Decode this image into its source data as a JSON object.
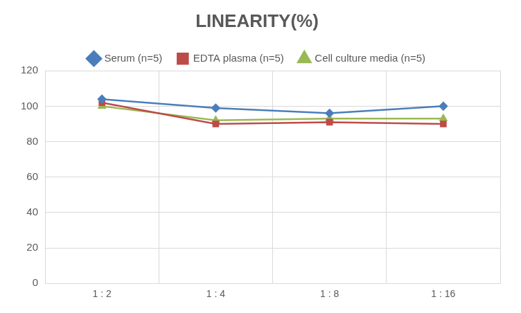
{
  "chart_data": {
    "type": "line",
    "title": "LINEARITY(%)",
    "categories": [
      "1 : 2",
      "1 : 4",
      "1 : 8",
      "1 : 16"
    ],
    "series": [
      {
        "name": "Serum (n=5)",
        "color": "#4a7ebb",
        "marker": "diamond",
        "values": [
          104,
          99,
          96,
          100
        ]
      },
      {
        "name": "EDTA plasma (n=5)",
        "color": "#be4b48",
        "marker": "square",
        "values": [
          102,
          90,
          91,
          90
        ]
      },
      {
        "name": "Cell culture media (n=5)",
        "color": "#98b954",
        "marker": "triangle",
        "values": [
          100,
          92,
          93,
          93
        ]
      }
    ],
    "ylim": [
      0,
      120
    ],
    "yticks": [
      0,
      20,
      40,
      60,
      80,
      100,
      120
    ],
    "grid": true,
    "legend": "top"
  }
}
